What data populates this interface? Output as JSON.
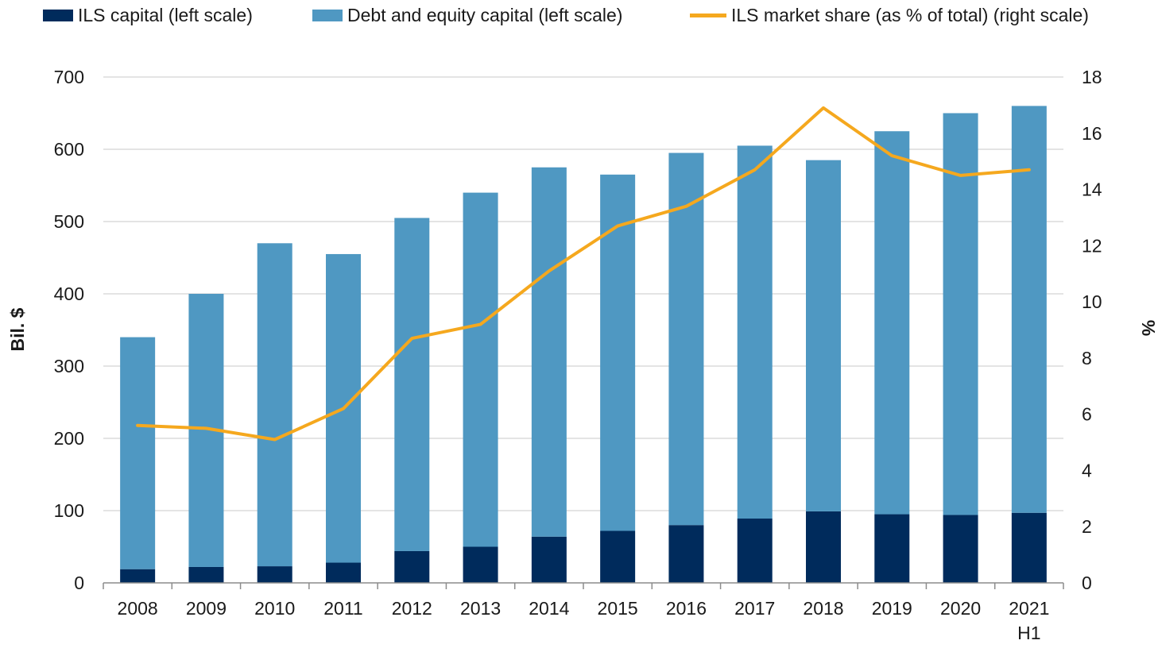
{
  "legend": {
    "ils": "ILS capital (left scale)",
    "debt": "Debt and equity capital (left scale)",
    "share": "ILS market share (as % of total) (right scale)"
  },
  "colors": {
    "ils": "#002b5c",
    "debt": "#4f98c2",
    "share": "#f5a81e",
    "grid": "#c8c8c8",
    "axis": "#8c8c8c"
  },
  "chart_data": {
    "type": "bar",
    "stacked": true,
    "categories": [
      "2008",
      "2009",
      "2010",
      "2011",
      "2012",
      "2013",
      "2014",
      "2015",
      "2016",
      "2017",
      "2018",
      "2019",
      "2020",
      "2021 H1"
    ],
    "series": [
      {
        "name": "ILS capital (left scale)",
        "axis": "left",
        "values": [
          19,
          22,
          23,
          28,
          44,
          50,
          64,
          72,
          80,
          89,
          99,
          95,
          94,
          97
        ]
      },
      {
        "name": "Debt and equity capital (left scale)",
        "axis": "left",
        "values": [
          321,
          378,
          447,
          427,
          461,
          490,
          511,
          493,
          515,
          516,
          486,
          530,
          556,
          563
        ]
      },
      {
        "name": "ILS market share (as % of total) (right scale)",
        "type": "line",
        "axis": "right",
        "values": [
          5.6,
          5.5,
          5.1,
          6.2,
          8.7,
          9.2,
          11.1,
          12.7,
          13.4,
          14.7,
          16.9,
          15.2,
          14.5,
          14.7
        ]
      }
    ],
    "ylabel": "Bil. $",
    "y2label": "%",
    "ylim": [
      0,
      700
    ],
    "yticks": [
      0,
      100,
      200,
      300,
      400,
      500,
      600,
      700
    ],
    "y2lim": [
      0,
      18
    ],
    "y2ticks": [
      0,
      2,
      4,
      6,
      8,
      10,
      12,
      14,
      16,
      18
    ],
    "grid": true,
    "legend_position": "top"
  }
}
